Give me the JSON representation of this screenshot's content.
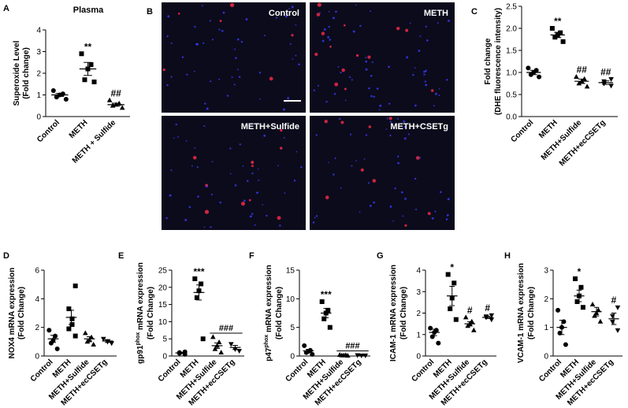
{
  "chart_data": [
    {
      "type": "dotplot",
      "panel": "A",
      "title": "Plasma",
      "ylabel": [
        "Superoxide Level",
        "(Fold change)"
      ],
      "ylim": [
        0,
        4
      ],
      "yticks": [
        0,
        1,
        2,
        3,
        4
      ],
      "groups": [
        {
          "name": "Control",
          "marker": "circle",
          "color": "#000000",
          "values": [
            0.8,
            0.9,
            1.0,
            1.05,
            1.2
          ],
          "mean": 1.0,
          "sem": 0.07
        },
        {
          "name": "METH",
          "marker": "square",
          "color": "#000000",
          "values": [
            1.6,
            1.7,
            2.2,
            2.4,
            2.9
          ],
          "mean": 2.2,
          "sem": 0.3,
          "annotation": "**"
        },
        {
          "name": "METH + Sulfide",
          "marker": "triangle",
          "color": "#000000",
          "values": [
            0.4,
            0.5,
            0.55,
            0.6,
            0.75
          ],
          "mean": 0.55,
          "sem": 0.07,
          "annotation": "##"
        }
      ]
    },
    {
      "type": "micrograph",
      "panel": "B",
      "panels": [
        {
          "label": "Control"
        },
        {
          "label": "METH"
        },
        {
          "label": "METH+Sulfide"
        },
        {
          "label": "METH+CSETg"
        }
      ]
    },
    {
      "type": "dotplot",
      "panel": "C",
      "ylabel": [
        "Fold change",
        "(DHE fluorescence intensity)"
      ],
      "ylim": [
        0,
        2.5
      ],
      "yticks": [
        {
          "value": 0,
          "label": "0.0"
        },
        0.5,
        {
          "value": 1,
          "label": "1.0"
        },
        1.5,
        {
          "value": 2,
          "label": "2.0"
        },
        2.5
      ],
      "groups": [
        {
          "name": "Control",
          "marker": "circle",
          "color": "#000000",
          "values": [
            0.9,
            0.95,
            1.0,
            1.05,
            1.1
          ],
          "mean": 1.0,
          "sem": 0.05
        },
        {
          "name": "METH",
          "marker": "square",
          "color": "#000000",
          "values": [
            1.7,
            1.8,
            1.85,
            1.9,
            2.0
          ],
          "mean": 1.85,
          "sem": 0.06,
          "annotation": "**"
        },
        {
          "name": "METH+Sulfide",
          "marker": "triangle",
          "color": "#000000",
          "values": [
            0.68,
            0.75,
            0.8,
            0.85,
            0.9
          ],
          "mean": 0.8,
          "sem": 0.05,
          "annotation": "##"
        },
        {
          "name": "METH+ecCSETg",
          "marker": "triangle-down",
          "color": "#000000",
          "values": [
            0.7,
            0.75,
            0.8,
            0.85
          ],
          "mean": 0.77,
          "sem": 0.04,
          "annotation": "##"
        }
      ]
    },
    {
      "type": "dotplot",
      "panel": "D",
      "ylabel": [
        "NOX4 mRNA expression",
        "(Fold Change)"
      ],
      "ylim": [
        0,
        6
      ],
      "yticks": [
        0,
        2,
        4,
        6
      ],
      "groups": [
        {
          "name": "Control",
          "marker": "circle",
          "color": "#000000",
          "values": [
            0.5,
            0.9,
            1.1,
            1.4,
            1.8
          ],
          "mean": 1.2,
          "sem": 0.25
        },
        {
          "name": "METH",
          "marker": "square",
          "color": "#000000",
          "values": [
            1.4,
            1.9,
            2.2,
            2.6,
            3.3,
            4.9
          ],
          "mean": 2.7,
          "sem": 0.5
        },
        {
          "name": "METH+Sulfide",
          "marker": "triangle",
          "color": "#000000",
          "values": [
            0.8,
            1.0,
            1.1,
            1.3,
            1.6
          ],
          "mean": 1.2,
          "sem": 0.15
        },
        {
          "name": "METH+ecCSETg",
          "marker": "triangle-down",
          "color": "#000000",
          "values": [
            0.9,
            1.0,
            1.2
          ],
          "mean": 1.05,
          "sem": 0.1
        }
      ]
    },
    {
      "type": "dotplot",
      "panel": "E",
      "ylabel": [
        {
          "text": "gp91",
          "sup": "phox",
          "rest": " mRNA  expression"
        },
        "(Fold Change)"
      ],
      "ylim": [
        0,
        25
      ],
      "yticks": [
        0,
        5,
        10,
        15,
        20,
        25
      ],
      "groups": [
        {
          "name": "Control",
          "marker": "circle",
          "color": "#000000",
          "values": [
            0.5,
            0.8,
            1.0,
            1.2
          ],
          "mean": 0.9,
          "sem": 0.15
        },
        {
          "name": "METH",
          "marker": "square",
          "color": "#000000",
          "values": [
            5,
            17,
            19,
            21,
            22.5
          ],
          "mean": 18.5,
          "sem": 2.2,
          "annotation": "***"
        },
        {
          "name": "METH+Sulfide",
          "marker": "triangle",
          "color": "#000000",
          "values": [
            1,
            2,
            3,
            4,
            5.5
          ],
          "mean": 3,
          "sem": 0.8,
          "annotation": "###",
          "annotation_line": true
        },
        {
          "name": "METH+ecCSETg",
          "marker": "triangle-down",
          "color": "#000000",
          "values": [
            1.5,
            2,
            3.5
          ],
          "mean": 2.5,
          "sem": 0.6
        }
      ]
    },
    {
      "type": "dotplot",
      "panel": "F",
      "ylabel": [
        {
          "text": "p47",
          "sup": "phox",
          "rest": "  mRNA  expression"
        },
        "(Fold Change)"
      ],
      "ylim": [
        0,
        15
      ],
      "yticks": [
        0,
        5,
        10,
        15
      ],
      "groups": [
        {
          "name": "Control",
          "marker": "circle",
          "color": "#000000",
          "values": [
            0.3,
            0.6,
            0.8,
            1.0,
            1.8
          ],
          "mean": 0.9,
          "sem": 0.25
        },
        {
          "name": "METH",
          "marker": "square",
          "color": "#000000",
          "values": [
            5,
            6.5,
            7.5,
            8,
            9.5
          ],
          "mean": 7.5,
          "sem": 0.8,
          "annotation": "***"
        },
        {
          "name": "METH+Sulfide",
          "marker": "triangle",
          "color": "#000000",
          "values": [
            0.05,
            0.1,
            0.1,
            0.15,
            0.2
          ],
          "mean": 0.1,
          "sem": 0.03,
          "annotation": "###",
          "annotation_line": true
        },
        {
          "name": "METH+ecCSETg",
          "marker": "triangle-down",
          "color": "#000000",
          "values": [
            0.1,
            0.1,
            0.15
          ],
          "mean": 0.12,
          "sem": 0.02
        }
      ]
    },
    {
      "type": "dotplot",
      "panel": "G",
      "ylabel": [
        "ICAM-1 mRNA expression",
        "(Fold Change)"
      ],
      "ylim": [
        0,
        4
      ],
      "yticks": [
        0,
        1,
        2,
        3,
        4
      ],
      "groups": [
        {
          "name": "Control",
          "marker": "circle",
          "color": "#000000",
          "values": [
            0.6,
            0.9,
            1.1,
            1.2,
            1.3
          ],
          "mean": 1.1,
          "sem": 0.15
        },
        {
          "name": "METH",
          "marker": "square",
          "color": "#000000",
          "values": [
            1.7,
            2.2,
            2.7,
            3.4,
            3.8
          ],
          "mean": 2.8,
          "sem": 0.45,
          "annotation": "*"
        },
        {
          "name": "METH+Sulfide",
          "marker": "triangle",
          "color": "#000000",
          "values": [
            1.2,
            1.4,
            1.5,
            1.6,
            1.8
          ],
          "mean": 1.5,
          "sem": 0.1,
          "annotation": "#"
        },
        {
          "name": "METH+ecCSETg",
          "marker": "triangle-down",
          "color": "#000000",
          "values": [
            1.7,
            1.8,
            1.85,
            1.9
          ],
          "mean": 1.8,
          "sem": 0.05,
          "annotation": "#"
        }
      ]
    },
    {
      "type": "dotplot",
      "panel": "H",
      "ylabel": [
        "VCAM-1 mRNA expression",
        "(Fold Change)"
      ],
      "ylim": [
        0,
        3
      ],
      "yticks": [
        0,
        1,
        2,
        3
      ],
      "groups": [
        {
          "name": "Control",
          "marker": "circle",
          "color": "#000000",
          "values": [
            0.4,
            0.8,
            1.0,
            1.2,
            1.6
          ],
          "mean": 1.0,
          "sem": 0.25
        },
        {
          "name": "METH",
          "marker": "square",
          "color": "#000000",
          "values": [
            1.7,
            1.9,
            2.1,
            2.4,
            2.7
          ],
          "mean": 2.1,
          "sem": 0.2,
          "annotation": "*"
        },
        {
          "name": "METH+Sulfide",
          "marker": "triangle",
          "color": "#000000",
          "values": [
            1.2,
            1.4,
            1.5,
            1.6,
            1.8
          ],
          "mean": 1.55,
          "sem": 0.15
        },
        {
          "name": "METH+ecCSETg",
          "marker": "triangle-down",
          "color": "#000000",
          "values": [
            0.9,
            1.2,
            1.4,
            1.7
          ],
          "mean": 1.3,
          "sem": 0.2,
          "annotation": "#"
        }
      ]
    }
  ]
}
